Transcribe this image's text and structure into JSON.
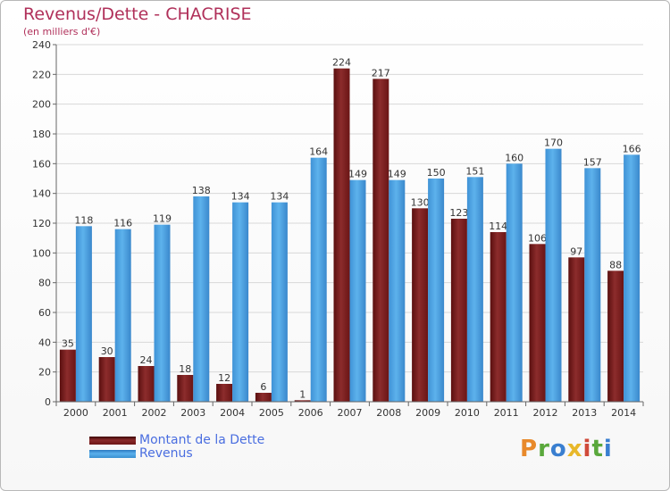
{
  "title": "Revenus/Dette - CHACRISE",
  "subtitle": "(en milliers d'€)",
  "brand": "Proxiti",
  "colors": {
    "dette": "#7a1f1f",
    "revenus": "#4aa0e0",
    "title": "#b0305a",
    "legend_text": "#4a6ee0"
  },
  "chart_data": {
    "type": "bar",
    "categories": [
      "2000",
      "2001",
      "2002",
      "2003",
      "2004",
      "2005",
      "2006",
      "2007",
      "2008",
      "2009",
      "2010",
      "2011",
      "2012",
      "2013",
      "2014"
    ],
    "series": [
      {
        "name": "Montant de la Dette",
        "values": [
          35,
          30,
          24,
          18,
          12,
          6,
          1,
          224,
          217,
          130,
          123,
          114,
          106,
          97,
          88
        ]
      },
      {
        "name": "Revenus",
        "values": [
          118,
          116,
          119,
          138,
          134,
          134,
          164,
          149,
          149,
          150,
          151,
          160,
          170,
          157,
          166
        ]
      }
    ],
    "ylim": [
      0,
      240
    ],
    "yticks": [
      0,
      20,
      40,
      60,
      80,
      100,
      120,
      140,
      160,
      180,
      200,
      220,
      240
    ],
    "grid": true,
    "legend_position": "bottom-left"
  }
}
